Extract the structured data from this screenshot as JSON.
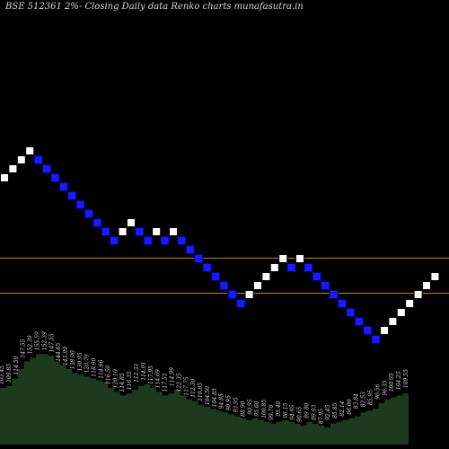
{
  "title": "BSE 512361 2%-  Closing Daily data  Renko  charts munafasutra.in",
  "colors": {
    "background": "#000000",
    "up_brick": "#ffffff",
    "down_brick": "#1a1aff",
    "down_border": "#000080",
    "level_line": "#b8860b",
    "volume_fill": "#1e3a1e",
    "label": "#d8d8d8"
  },
  "chart_data": {
    "type": "renko",
    "title": "BSE 512361 2%-  Closing Daily data  Renko  charts munafasutra.in",
    "y_range": [
      -10,
      26
    ],
    "bricks": [
      {
        "dir": "up",
        "level": 0
      },
      {
        "dir": "up",
        "level": 1
      },
      {
        "dir": "up",
        "level": 2
      },
      {
        "dir": "up",
        "level": 3
      },
      {
        "dir": "down",
        "level": 2
      },
      {
        "dir": "down",
        "level": 1
      },
      {
        "dir": "down",
        "level": 0
      },
      {
        "dir": "down",
        "level": -1
      },
      {
        "dir": "down",
        "level": -2
      },
      {
        "dir": "down",
        "level": -3
      },
      {
        "dir": "down",
        "level": -4
      },
      {
        "dir": "down",
        "level": -5
      },
      {
        "dir": "down",
        "level": -6
      },
      {
        "dir": "down",
        "level": -7
      },
      {
        "dir": "up",
        "level": -6
      },
      {
        "dir": "up",
        "level": -5
      },
      {
        "dir": "down",
        "level": -6
      },
      {
        "dir": "down",
        "level": -7
      },
      {
        "dir": "up",
        "level": -6
      },
      {
        "dir": "down",
        "level": -7
      },
      {
        "dir": "up",
        "level": -6
      },
      {
        "dir": "down",
        "level": -7
      },
      {
        "dir": "down",
        "level": -8
      },
      {
        "dir": "down",
        "level": -9
      },
      {
        "dir": "down",
        "level": -10
      },
      {
        "dir": "down",
        "level": -11
      },
      {
        "dir": "down",
        "level": -12
      },
      {
        "dir": "down",
        "level": -13
      },
      {
        "dir": "down",
        "level": -14
      },
      {
        "dir": "up",
        "level": -13
      },
      {
        "dir": "up",
        "level": -12
      },
      {
        "dir": "up",
        "level": -11
      },
      {
        "dir": "up",
        "level": -10
      },
      {
        "dir": "up",
        "level": -9
      },
      {
        "dir": "down",
        "level": -10
      },
      {
        "dir": "up",
        "level": -9
      },
      {
        "dir": "down",
        "level": -10
      },
      {
        "dir": "down",
        "level": -11
      },
      {
        "dir": "down",
        "level": -12
      },
      {
        "dir": "down",
        "level": -13
      },
      {
        "dir": "down",
        "level": -14
      },
      {
        "dir": "down",
        "level": -15
      },
      {
        "dir": "down",
        "level": -16
      },
      {
        "dir": "down",
        "level": -17
      },
      {
        "dir": "down",
        "level": -18
      },
      {
        "dir": "up",
        "level": -17
      },
      {
        "dir": "up",
        "level": -16
      },
      {
        "dir": "up",
        "level": -15
      },
      {
        "dir": "up",
        "level": -14
      },
      {
        "dir": "up",
        "level": -13
      },
      {
        "dir": "up",
        "level": -12
      },
      {
        "dir": "up",
        "level": -11
      }
    ],
    "horizontal_levels": [
      -8.5,
      -12.4
    ],
    "price_labels": [
      "103.45",
      "109.85",
      "114.59",
      "147.55",
      "152.39",
      "155.59",
      "152.39",
      "147.55",
      "144.65",
      "143.99",
      "138.90",
      "130.95",
      "120.79",
      "118.90",
      "114.66",
      "116.59",
      "120.10",
      "114.85",
      "116.35",
      "112.33",
      "114.91",
      "117.95",
      "114.69",
      "117.55",
      "114.99",
      "122.35",
      "117.75",
      "112.30",
      "110.85",
      "104.50",
      "104.85",
      "94.85",
      "90.95",
      "93.95",
      "88.90",
      "90.95",
      "95.60",
      "100.85",
      "99.70",
      "95.40",
      "96.15",
      "94.95",
      "90.65",
      "89.80",
      "89.93",
      "87.95",
      "92.45",
      "85.85",
      "82.14",
      "86.00",
      "83.84",
      "82.53",
      "85.95",
      "90.56",
      "96.35",
      "100.95",
      "104.25",
      "109.55"
    ],
    "volume": [
      30,
      31,
      35,
      40,
      44,
      46,
      48,
      48,
      47,
      44,
      42,
      40,
      38,
      37,
      36,
      35,
      34,
      33,
      30,
      28,
      26,
      27,
      29,
      31,
      32,
      30,
      28,
      26,
      27,
      29,
      26,
      24,
      23,
      21,
      20,
      19,
      18,
      17,
      16,
      15,
      14,
      13,
      14,
      13,
      12,
      11,
      12,
      13,
      12,
      11,
      10,
      12,
      11,
      10,
      9,
      11,
      12,
      13,
      14,
      15,
      17,
      18,
      19,
      22,
      24,
      25,
      26,
      27,
      28
    ]
  }
}
